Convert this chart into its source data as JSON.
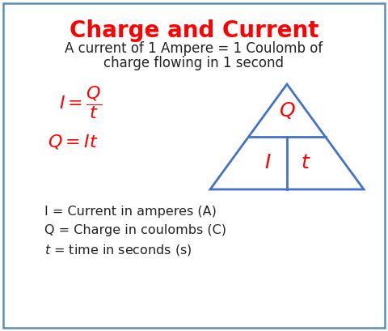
{
  "title": "Charge and Current",
  "title_color": "#FF0000",
  "title_fontsize": 20,
  "subtitle_line1": "A current of 1 Ampere = 1 Coulomb of",
  "subtitle_line2": "charge flowing in 1 second",
  "subtitle_color": "#222222",
  "subtitle_fontsize": 12,
  "formula1_parts": [
    "$I = $",
    "$\\dfrac{Q}{t}$"
  ],
  "formula2": "$Q = It$",
  "formula_color": "#FF0000",
  "formula_fontsize": 16,
  "legend1": "I = Current in amperes (A)",
  "legend2": "Q = Charge in coulombs (C)",
  "legend3": "$t$ = time in seconds (s)",
  "legend_color": "#222222",
  "legend_fontsize": 11.5,
  "triangle_color": "#4472C4",
  "triangle_label_Q": "$Q$",
  "triangle_label_I": "$I$",
  "triangle_label_t": "$t$",
  "triangle_label_color": "#FF0000",
  "triangle_label_fontsize": 18,
  "bg_color": "#FFFFFF",
  "border_color": "#5B8DB8",
  "border_linewidth": 1.8
}
